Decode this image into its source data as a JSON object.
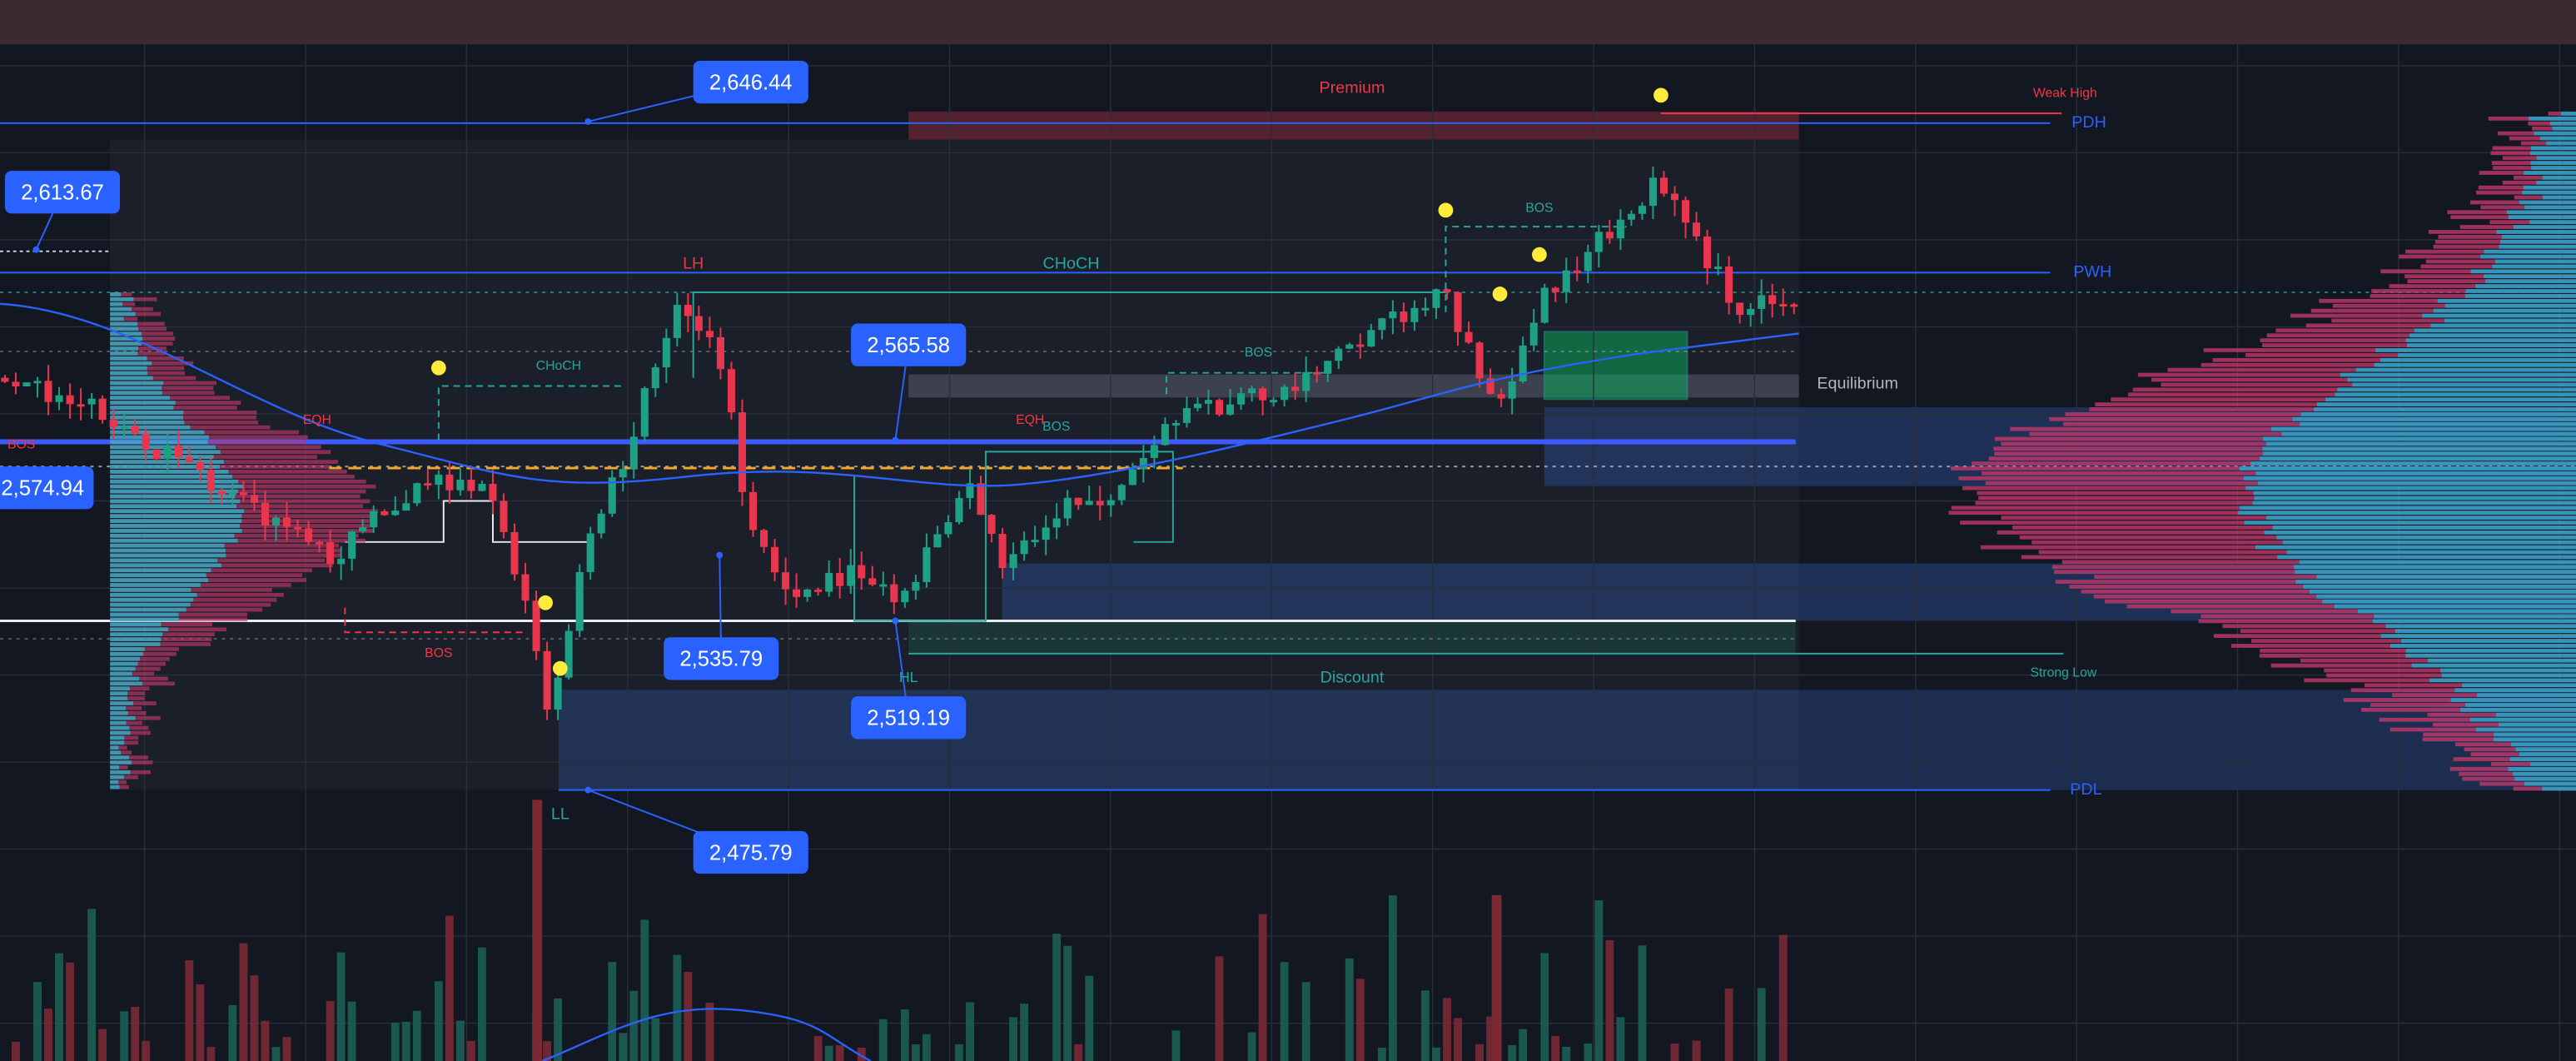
{
  "price_labels": [
    "2,646.44",
    "2,613.67",
    "2,565.58",
    "2,574.94",
    "2,535.79",
    "2,519.19",
    "2,475.79"
  ],
  "annotations": [
    "Premium",
    "Weak High",
    "PDH",
    "PWH",
    "Equilibrium",
    "Discount",
    "Strong Low",
    "PDL",
    "LH",
    "CHoCH",
    "CHoCH",
    "EQH",
    "EQH",
    "BOS",
    "BOS",
    "BOS",
    "BOS",
    "BOS",
    "HL",
    "LL"
  ]
}
